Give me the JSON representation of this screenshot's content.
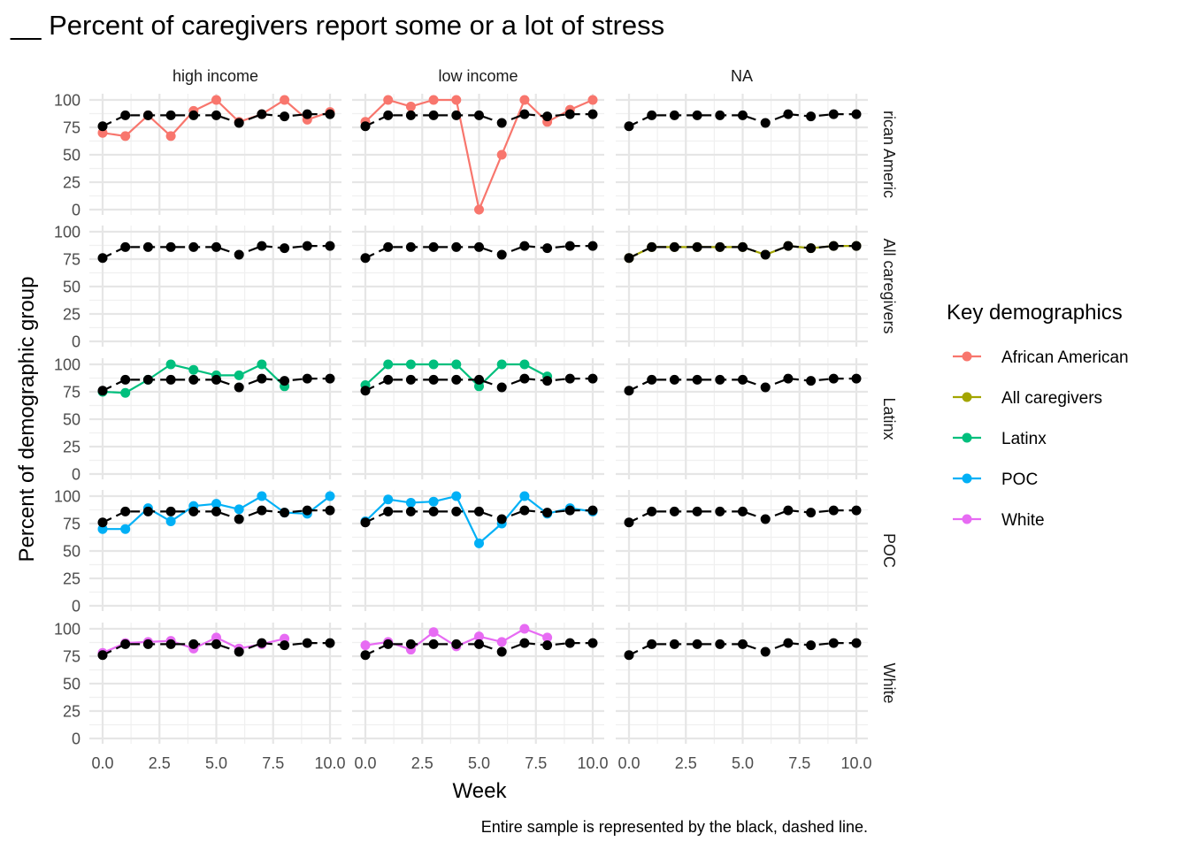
{
  "chart_data": {
    "type": "line",
    "title": "__ Percent of caregivers report some or a lot of stress",
    "xlabel": "Week",
    "ylabel": "Percent of demographic group",
    "caption": "Entire sample is represented by the black, dashed line.",
    "xlim": [
      0,
      10
    ],
    "ylim": [
      0,
      100
    ],
    "x_ticks": [
      "0.0",
      "2.5",
      "5.0",
      "7.5",
      "10.0"
    ],
    "y_ticks": [
      "0",
      "25",
      "50",
      "75",
      "100"
    ],
    "grid": true,
    "legend": {
      "title": "Key demographics",
      "position": "right",
      "entries": [
        {
          "name": "African American",
          "color": "#F8766D"
        },
        {
          "name": "All caregivers",
          "color": "#A3A500"
        },
        {
          "name": "Latinx",
          "color": "#00BF7D"
        },
        {
          "name": "POC",
          "color": "#00B0F6"
        },
        {
          "name": "White",
          "color": "#E76BF3"
        }
      ]
    },
    "facet_columns": [
      "high income",
      "low income",
      "NA"
    ],
    "facet_rows": [
      "African American",
      "All caregivers",
      "Latinx",
      "POC",
      "White"
    ],
    "facet_row_labels_as_drawn": [
      "rican Americ",
      "All caregivers",
      "Latinx",
      "POC",
      "White"
    ],
    "entire_sample": {
      "style": "black dashed",
      "x": [
        0,
        1,
        2,
        3,
        4,
        5,
        6,
        7,
        8,
        9,
        10
      ],
      "values": [
        76,
        86,
        86,
        86,
        86,
        86,
        79,
        87,
        85,
        87,
        87
      ]
    },
    "panels": [
      {
        "row": 0,
        "col": 0,
        "series": "African American",
        "x": [
          0,
          1,
          2,
          3,
          4,
          5,
          6,
          7,
          8,
          9,
          10
        ],
        "values": [
          70,
          67,
          86,
          67,
          90,
          100,
          80,
          87,
          100,
          82,
          89
        ]
      },
      {
        "row": 0,
        "col": 1,
        "series": "African American",
        "x": [
          0,
          1,
          2,
          3,
          4,
          5,
          6,
          7,
          8,
          9,
          10
        ],
        "values": [
          80,
          100,
          94,
          100,
          100,
          0,
          50,
          100,
          80,
          91,
          100
        ]
      },
      {
        "row": 1,
        "col": 2,
        "series": "All caregivers",
        "x": [
          0,
          1,
          2,
          3,
          4,
          5,
          6,
          7,
          8,
          9,
          10
        ],
        "values": [
          76,
          86,
          86,
          86,
          86,
          86,
          79,
          87,
          85,
          87,
          87
        ]
      },
      {
        "row": 2,
        "col": 0,
        "series": "Latinx",
        "x": [
          0,
          1,
          2,
          3,
          4,
          5,
          6,
          7,
          8
        ],
        "values": [
          75,
          74,
          86,
          100,
          95,
          90,
          90,
          100,
          80
        ]
      },
      {
        "row": 2,
        "col": 1,
        "series": "Latinx",
        "x": [
          0,
          1,
          2,
          3,
          4,
          5,
          6,
          7,
          8
        ],
        "values": [
          81,
          100,
          100,
          100,
          100,
          80,
          100,
          100,
          89
        ]
      },
      {
        "row": 3,
        "col": 0,
        "series": "POC",
        "x": [
          0,
          1,
          2,
          3,
          4,
          5,
          6,
          7,
          8,
          9,
          10
        ],
        "values": [
          70,
          70,
          89,
          77,
          91,
          93,
          88,
          100,
          85,
          84,
          100
        ]
      },
      {
        "row": 3,
        "col": 1,
        "series": "POC",
        "x": [
          0,
          1,
          2,
          3,
          4,
          5,
          6,
          7,
          8,
          9,
          10
        ],
        "values": [
          77,
          97,
          94,
          95,
          100,
          57,
          75,
          100,
          84,
          89,
          86
        ]
      },
      {
        "row": 4,
        "col": 0,
        "series": "White",
        "x": [
          0,
          1,
          2,
          3,
          4,
          5,
          6,
          7,
          8
        ],
        "values": [
          78,
          87,
          88,
          89,
          82,
          92,
          82,
          86,
          91
        ]
      },
      {
        "row": 4,
        "col": 1,
        "series": "White",
        "x": [
          0,
          1,
          2,
          3,
          4,
          5,
          6,
          7,
          8
        ],
        "values": [
          85,
          88,
          81,
          97,
          84,
          93,
          88,
          100,
          92
        ]
      }
    ]
  }
}
